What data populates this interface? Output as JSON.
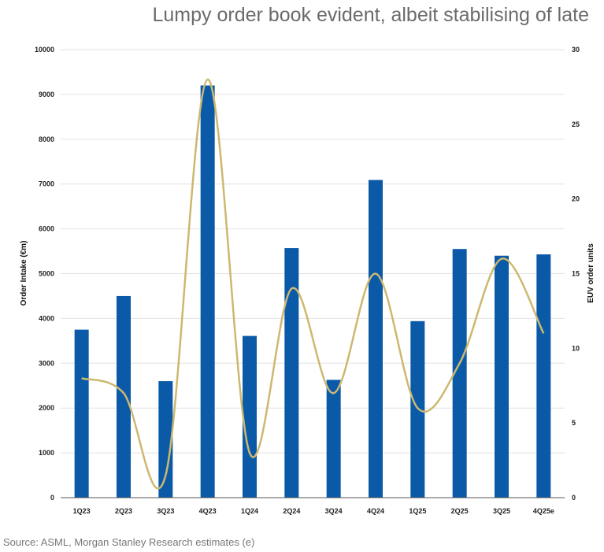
{
  "chart_data": {
    "type": "bar",
    "title": "Lumpy order book evident, albeit stabilising of late",
    "source": "Source: ASML, Morgan Stanley Research estimates (e)",
    "categories": [
      "1Q23",
      "2Q23",
      "3Q23",
      "4Q23",
      "1Q24",
      "2Q24",
      "3Q24",
      "4Q24",
      "1Q25",
      "2Q25",
      "3Q25",
      "4Q25e"
    ],
    "series": [
      {
        "name": "Order Intake (€m)",
        "type": "bar",
        "axis": "left",
        "color": "#0b5aa8",
        "values": [
          3750,
          4500,
          2600,
          9200,
          3610,
          5570,
          2630,
          7090,
          3940,
          5550,
          5400,
          5430
        ]
      },
      {
        "name": "EUV order units",
        "type": "line",
        "axis": "right",
        "color": "#cdb870",
        "values": [
          8,
          7,
          1.5,
          28,
          3,
          14,
          7,
          15,
          6,
          9,
          16,
          11
        ]
      }
    ],
    "ylabel": "Order Intake (€m)",
    "y2label": "EUV order units",
    "ylim": [
      0,
      10000
    ],
    "yticks": [
      0,
      1000,
      2000,
      3000,
      4000,
      5000,
      6000,
      7000,
      8000,
      9000,
      10000
    ],
    "y2lim": [
      0,
      30
    ],
    "y2ticks": [
      0,
      5,
      10,
      15,
      20,
      25,
      30
    ],
    "grid": true
  }
}
